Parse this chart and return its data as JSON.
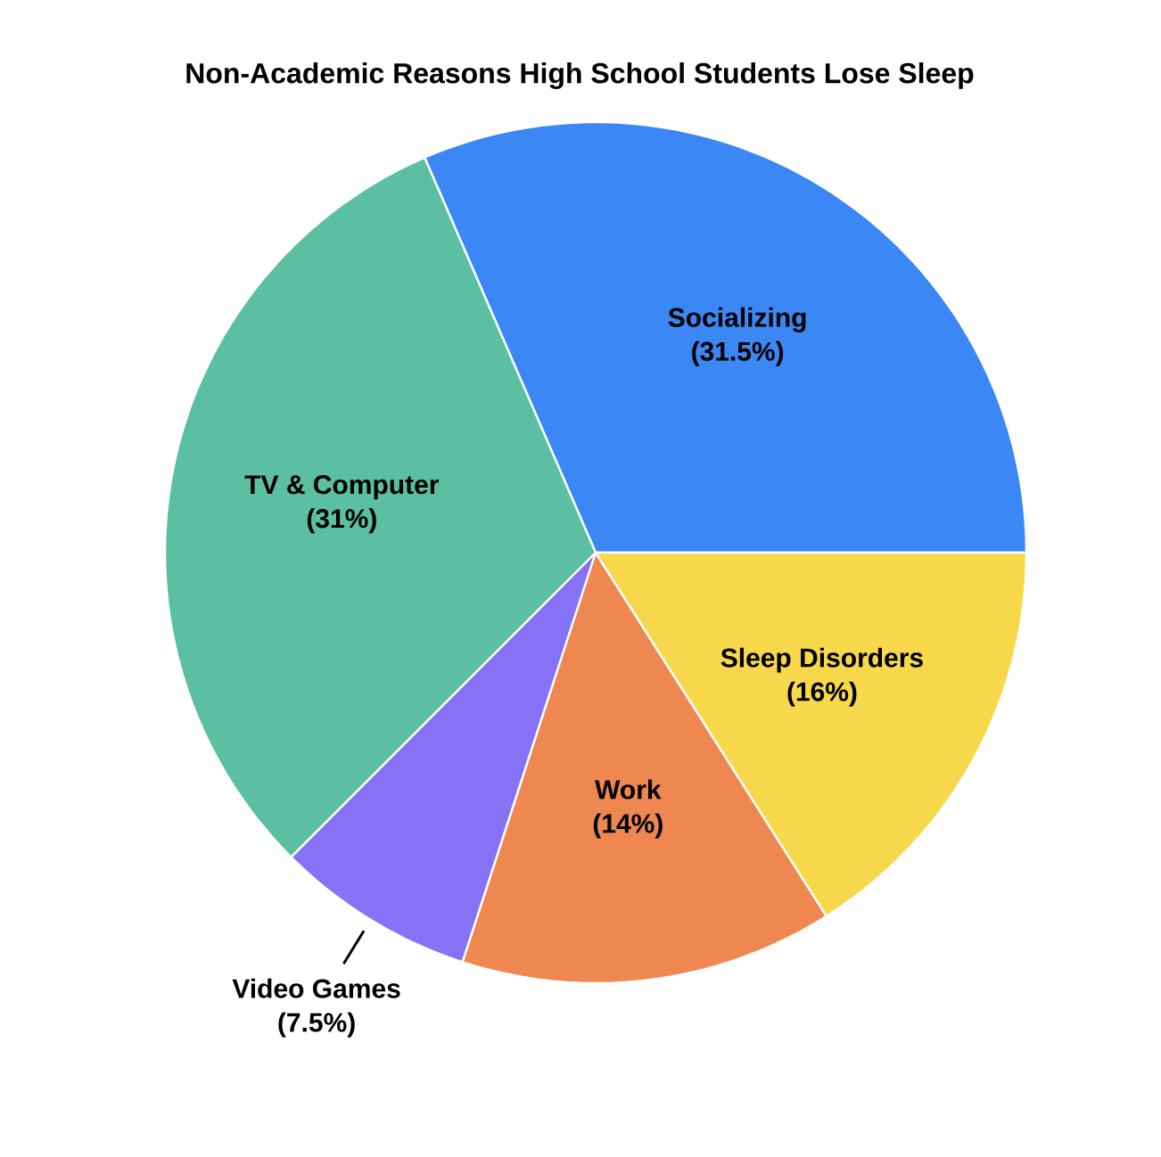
{
  "chart_data": {
    "type": "pie",
    "title": "Non-Academic Reasons High School Students Lose Sleep",
    "categories": [
      "Socializing",
      "TV & Computer",
      "Video Games",
      "Work",
      "Sleep Disorders"
    ],
    "values": [
      31.5,
      31,
      7.5,
      14,
      16
    ],
    "colors": [
      "#3b87f5",
      "#5bbfa1",
      "#8672f4",
      "#ef8751",
      "#f7d84b"
    ],
    "value_labels": [
      "(31.5%)",
      "(31%)",
      "(7.5%)",
      "(14%)",
      "(16%)"
    ]
  }
}
